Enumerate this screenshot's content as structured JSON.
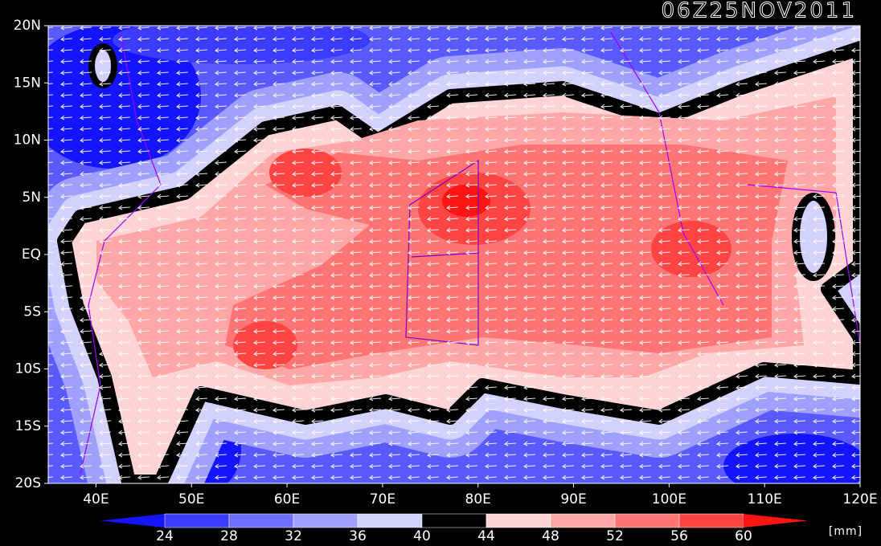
{
  "title": "06Z25NOV2011",
  "lon_range": [
    35,
    120
  ],
  "lat_range": [
    -20,
    20
  ],
  "lat_labels": [
    {
      "value": 20,
      "label": "20N"
    },
    {
      "value": 15,
      "label": "15N"
    },
    {
      "value": 10,
      "label": "10N"
    },
    {
      "value": 5,
      "label": "5N"
    },
    {
      "value": 0,
      "label": "EQ"
    },
    {
      "value": -5,
      "label": "5S"
    },
    {
      "value": -10,
      "label": "10S"
    },
    {
      "value": -15,
      "label": "15S"
    },
    {
      "value": -20,
      "label": "20S"
    }
  ],
  "lon_labels": [
    {
      "value": 40,
      "label": "40E"
    },
    {
      "value": 50,
      "label": "50E"
    },
    {
      "value": 60,
      "label": "60E"
    },
    {
      "value": 70,
      "label": "70E"
    },
    {
      "value": 80,
      "label": "80E"
    },
    {
      "value": 90,
      "label": "90E"
    },
    {
      "value": 100,
      "label": "100E"
    },
    {
      "value": 110,
      "label": "110E"
    },
    {
      "value": 120,
      "label": "120E"
    }
  ],
  "colorbar": {
    "levels": [
      24,
      28,
      32,
      36,
      40,
      44,
      48,
      52,
      56,
      60
    ],
    "colors": [
      "#1414ff",
      "#3c3cff",
      "#6e6eff",
      "#a0a0ff",
      "#d2d2ff",
      "#000000",
      "#ffd4d4",
      "#ffa6a6",
      "#ff7474",
      "#ff4444",
      "#ff1414"
    ],
    "unit": "[mm]"
  }
}
